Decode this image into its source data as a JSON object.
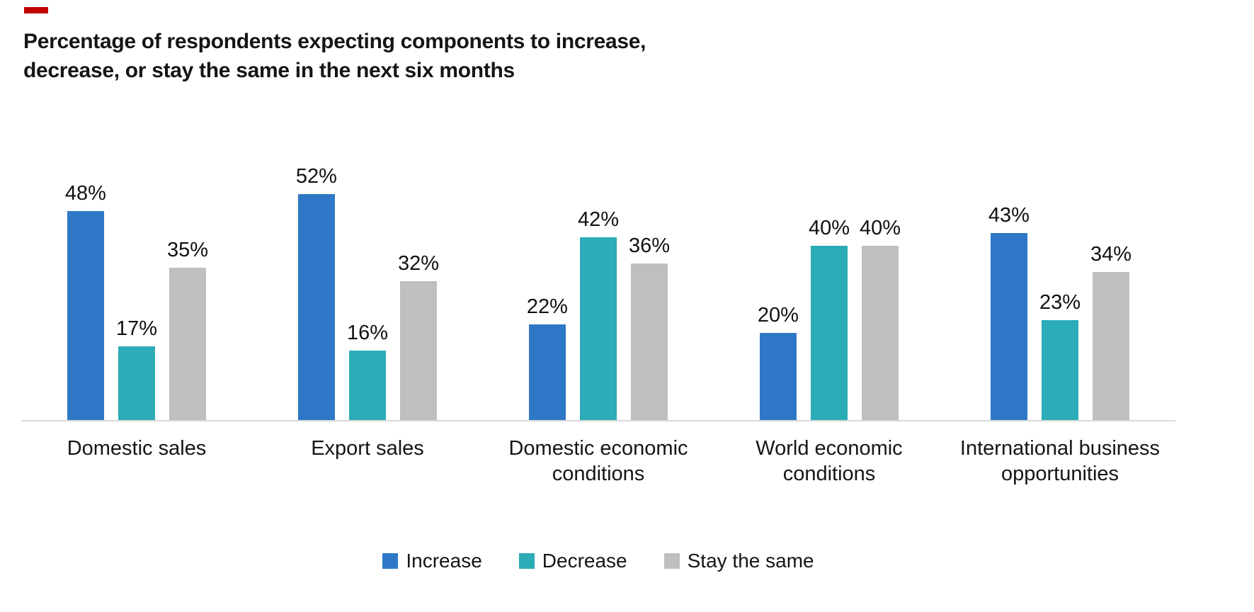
{
  "decoration": {
    "accent_dash_color": "#c00000"
  },
  "title": {
    "line1": "Percentage of respondents expecting components to increase,",
    "line2": "decrease, or stay the same in the next six months"
  },
  "chart_data": {
    "type": "bar",
    "title": "Percentage of respondents expecting components to increase, decrease, or stay the same in the next six months",
    "categories": [
      "Domestic sales",
      "Export sales",
      "Domestic economic conditions",
      "World economic conditions",
      "International business opportunities"
    ],
    "series": [
      {
        "name": "Increase",
        "color": "#2e78c7",
        "values": [
          48,
          52,
          22,
          20,
          43
        ]
      },
      {
        "name": "Decrease",
        "color": "#2bacb6",
        "values": [
          17,
          16,
          42,
          40,
          23
        ]
      },
      {
        "name": "Stay the same",
        "color": "#bfbfbf",
        "values": [
          35,
          32,
          36,
          40,
          34
        ]
      }
    ],
    "value_suffix": "%",
    "data_labels": true,
    "ylim": [
      0,
      60
    ],
    "grid": false,
    "xlabel": "",
    "ylabel": "",
    "legend_position": "bottom",
    "axis_line_color": "#d9d9d9"
  }
}
